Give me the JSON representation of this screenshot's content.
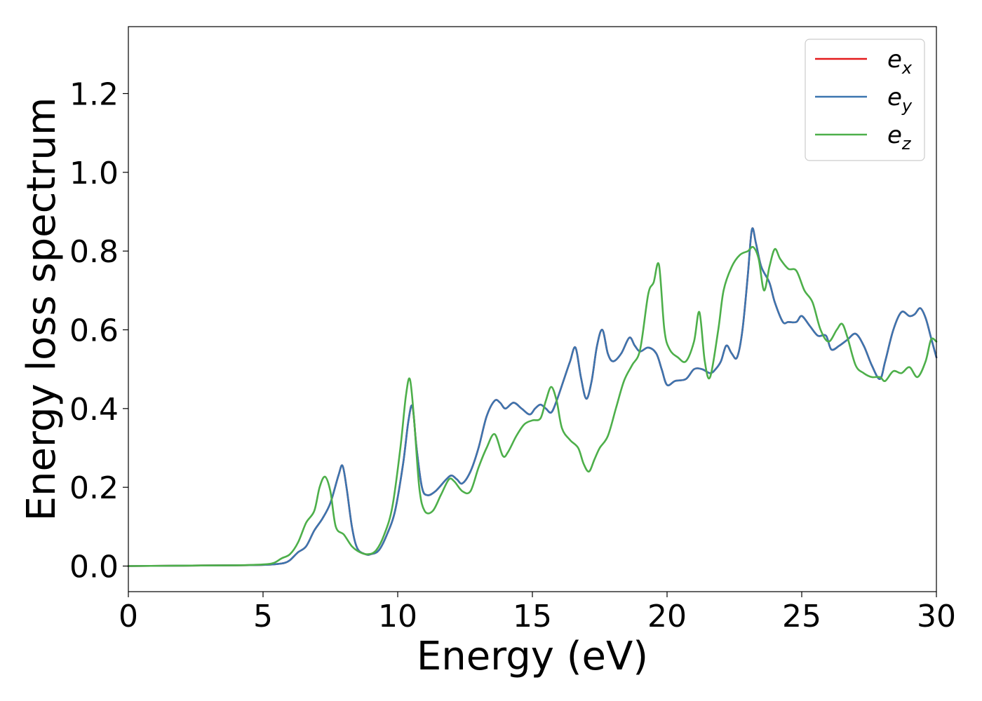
{
  "chart_data": {
    "type": "line",
    "title": "",
    "xlabel": "Energy (eV)",
    "ylabel": "Energy loss spectrum",
    "xlim": [
      0,
      30
    ],
    "ylim": [
      -0.065,
      1.37
    ],
    "xticks": [
      0,
      5,
      10,
      15,
      20,
      25,
      30
    ],
    "yticks": [
      0.0,
      0.2,
      0.4,
      0.6,
      0.8,
      1.0,
      1.2
    ],
    "xtick_labels": [
      "0",
      "5",
      "10",
      "15",
      "20",
      "25",
      "30"
    ],
    "ytick_labels": [
      "0.0",
      "0.2",
      "0.4",
      "0.6",
      "0.8",
      "1.0",
      "1.2"
    ],
    "grid": false,
    "legend_position": "top-right",
    "series": [
      {
        "name": "e",
        "subscript": "x",
        "color": "#e41a1c",
        "x": [
          0,
          2,
          4,
          5,
          5.5,
          5.8,
          6.0,
          6.3,
          6.6,
          6.9,
          7.2,
          7.5,
          7.8,
          7.95,
          8.1,
          8.3,
          8.5,
          8.8,
          9.0,
          9.3,
          9.6,
          9.9,
          10.2,
          10.4,
          10.55,
          10.7,
          10.9,
          11.1,
          11.4,
          11.8,
          12.0,
          12.2,
          12.4,
          12.7,
          13.0,
          13.3,
          13.6,
          13.8,
          14.0,
          14.3,
          14.6,
          14.9,
          15.1,
          15.3,
          15.5,
          15.7,
          15.9,
          16.2,
          16.4,
          16.6,
          16.8,
          17.0,
          17.2,
          17.4,
          17.6,
          17.8,
          18.0,
          18.3,
          18.6,
          18.8,
          19.0,
          19.3,
          19.6,
          19.8,
          20.0,
          20.3,
          20.7,
          21.0,
          21.3,
          21.6,
          21.8,
          22.0,
          22.2,
          22.4,
          22.6,
          22.8,
          23.0,
          23.15,
          23.3,
          23.5,
          23.8,
          24.0,
          24.3,
          24.5,
          24.8,
          25.0,
          25.3,
          25.6,
          25.9,
          26.1,
          26.4,
          26.7,
          27.0,
          27.3,
          27.6,
          27.9,
          28.1,
          28.4,
          28.7,
          29.0,
          29.2,
          29.4,
          29.6,
          29.8,
          30.0
        ],
        "y": [
          0.0,
          0.001,
          0.002,
          0.003,
          0.005,
          0.008,
          0.015,
          0.035,
          0.05,
          0.09,
          0.12,
          0.16,
          0.23,
          0.255,
          0.2,
          0.1,
          0.045,
          0.03,
          0.03,
          0.04,
          0.08,
          0.14,
          0.26,
          0.37,
          0.405,
          0.3,
          0.2,
          0.18,
          0.19,
          0.22,
          0.23,
          0.22,
          0.21,
          0.24,
          0.3,
          0.38,
          0.42,
          0.415,
          0.4,
          0.415,
          0.4,
          0.385,
          0.4,
          0.41,
          0.4,
          0.39,
          0.42,
          0.48,
          0.52,
          0.555,
          0.48,
          0.425,
          0.47,
          0.56,
          0.6,
          0.54,
          0.52,
          0.54,
          0.58,
          0.56,
          0.545,
          0.555,
          0.54,
          0.5,
          0.46,
          0.47,
          0.475,
          0.5,
          0.5,
          0.49,
          0.5,
          0.52,
          0.56,
          0.54,
          0.53,
          0.6,
          0.74,
          0.855,
          0.82,
          0.76,
          0.72,
          0.67,
          0.62,
          0.62,
          0.62,
          0.635,
          0.61,
          0.585,
          0.585,
          0.55,
          0.56,
          0.575,
          0.59,
          0.56,
          0.51,
          0.475,
          0.52,
          0.6,
          0.645,
          0.635,
          0.64,
          0.655,
          0.63,
          0.58,
          0.53
        ]
      },
      {
        "name": "e",
        "subscript": "y",
        "color": "#3b75af",
        "x": [
          0,
          2,
          4,
          5,
          5.5,
          5.8,
          6.0,
          6.3,
          6.6,
          6.9,
          7.2,
          7.5,
          7.8,
          7.95,
          8.1,
          8.3,
          8.5,
          8.8,
          9.0,
          9.3,
          9.6,
          9.9,
          10.2,
          10.4,
          10.55,
          10.7,
          10.9,
          11.1,
          11.4,
          11.8,
          12.0,
          12.2,
          12.4,
          12.7,
          13.0,
          13.3,
          13.6,
          13.8,
          14.0,
          14.3,
          14.6,
          14.9,
          15.1,
          15.3,
          15.5,
          15.7,
          15.9,
          16.2,
          16.4,
          16.6,
          16.8,
          17.0,
          17.2,
          17.4,
          17.6,
          17.8,
          18.0,
          18.3,
          18.6,
          18.8,
          19.0,
          19.3,
          19.6,
          19.8,
          20.0,
          20.3,
          20.7,
          21.0,
          21.3,
          21.6,
          21.8,
          22.0,
          22.2,
          22.4,
          22.6,
          22.8,
          23.0,
          23.15,
          23.3,
          23.5,
          23.8,
          24.0,
          24.3,
          24.5,
          24.8,
          25.0,
          25.3,
          25.6,
          25.9,
          26.1,
          26.4,
          26.7,
          27.0,
          27.3,
          27.6,
          27.9,
          28.1,
          28.4,
          28.7,
          29.0,
          29.2,
          29.4,
          29.6,
          29.8,
          30.0
        ],
        "y": [
          0.0,
          0.001,
          0.002,
          0.003,
          0.005,
          0.008,
          0.015,
          0.035,
          0.05,
          0.09,
          0.12,
          0.16,
          0.23,
          0.255,
          0.2,
          0.1,
          0.045,
          0.03,
          0.03,
          0.04,
          0.08,
          0.14,
          0.26,
          0.37,
          0.405,
          0.3,
          0.2,
          0.18,
          0.19,
          0.22,
          0.23,
          0.22,
          0.21,
          0.24,
          0.3,
          0.38,
          0.42,
          0.415,
          0.4,
          0.415,
          0.4,
          0.385,
          0.4,
          0.41,
          0.4,
          0.39,
          0.42,
          0.48,
          0.52,
          0.555,
          0.48,
          0.425,
          0.47,
          0.56,
          0.6,
          0.54,
          0.52,
          0.54,
          0.58,
          0.56,
          0.545,
          0.555,
          0.54,
          0.5,
          0.46,
          0.47,
          0.475,
          0.5,
          0.5,
          0.49,
          0.5,
          0.52,
          0.56,
          0.54,
          0.53,
          0.6,
          0.74,
          0.855,
          0.82,
          0.76,
          0.72,
          0.67,
          0.62,
          0.62,
          0.62,
          0.635,
          0.61,
          0.585,
          0.585,
          0.55,
          0.56,
          0.575,
          0.59,
          0.56,
          0.51,
          0.475,
          0.52,
          0.6,
          0.645,
          0.635,
          0.64,
          0.655,
          0.63,
          0.58,
          0.53
        ]
      },
      {
        "name": "e",
        "subscript": "z",
        "color": "#4daf4a",
        "x": [
          0,
          2,
          4,
          5,
          5.4,
          5.7,
          6.0,
          6.3,
          6.6,
          6.9,
          7.1,
          7.3,
          7.5,
          7.7,
          8.0,
          8.3,
          8.6,
          8.9,
          9.2,
          9.5,
          9.8,
          10.1,
          10.3,
          10.45,
          10.6,
          10.8,
          11.0,
          11.3,
          11.6,
          11.9,
          12.1,
          12.4,
          12.7,
          13.0,
          13.3,
          13.6,
          13.9,
          14.1,
          14.4,
          14.7,
          15.0,
          15.3,
          15.5,
          15.7,
          15.9,
          16.1,
          16.4,
          16.7,
          16.9,
          17.1,
          17.3,
          17.5,
          17.8,
          18.1,
          18.4,
          18.7,
          19.0,
          19.3,
          19.5,
          19.7,
          19.9,
          20.1,
          20.4,
          20.7,
          21.0,
          21.2,
          21.4,
          21.6,
          21.9,
          22.1,
          22.4,
          22.7,
          23.0,
          23.2,
          23.4,
          23.6,
          23.8,
          24.0,
          24.2,
          24.5,
          24.8,
          25.1,
          25.4,
          25.7,
          26.0,
          26.3,
          26.5,
          26.7,
          27.0,
          27.3,
          27.6,
          27.9,
          28.1,
          28.4,
          28.7,
          29.0,
          29.3,
          29.6,
          29.8,
          30.0
        ],
        "y": [
          0.0,
          0.001,
          0.002,
          0.004,
          0.008,
          0.02,
          0.03,
          0.06,
          0.11,
          0.14,
          0.2,
          0.227,
          0.19,
          0.1,
          0.08,
          0.05,
          0.035,
          0.03,
          0.04,
          0.08,
          0.15,
          0.3,
          0.43,
          0.475,
          0.38,
          0.2,
          0.14,
          0.14,
          0.18,
          0.22,
          0.215,
          0.19,
          0.19,
          0.25,
          0.3,
          0.335,
          0.28,
          0.29,
          0.33,
          0.36,
          0.37,
          0.375,
          0.42,
          0.455,
          0.42,
          0.35,
          0.32,
          0.3,
          0.26,
          0.24,
          0.27,
          0.3,
          0.33,
          0.4,
          0.47,
          0.51,
          0.55,
          0.69,
          0.72,
          0.765,
          0.6,
          0.55,
          0.53,
          0.52,
          0.57,
          0.645,
          0.52,
          0.48,
          0.6,
          0.7,
          0.76,
          0.79,
          0.8,
          0.81,
          0.78,
          0.7,
          0.76,
          0.805,
          0.78,
          0.755,
          0.75,
          0.7,
          0.67,
          0.6,
          0.57,
          0.6,
          0.615,
          0.58,
          0.51,
          0.49,
          0.48,
          0.48,
          0.47,
          0.495,
          0.49,
          0.505,
          0.48,
          0.52,
          0.575,
          0.57
        ]
      }
    ]
  }
}
